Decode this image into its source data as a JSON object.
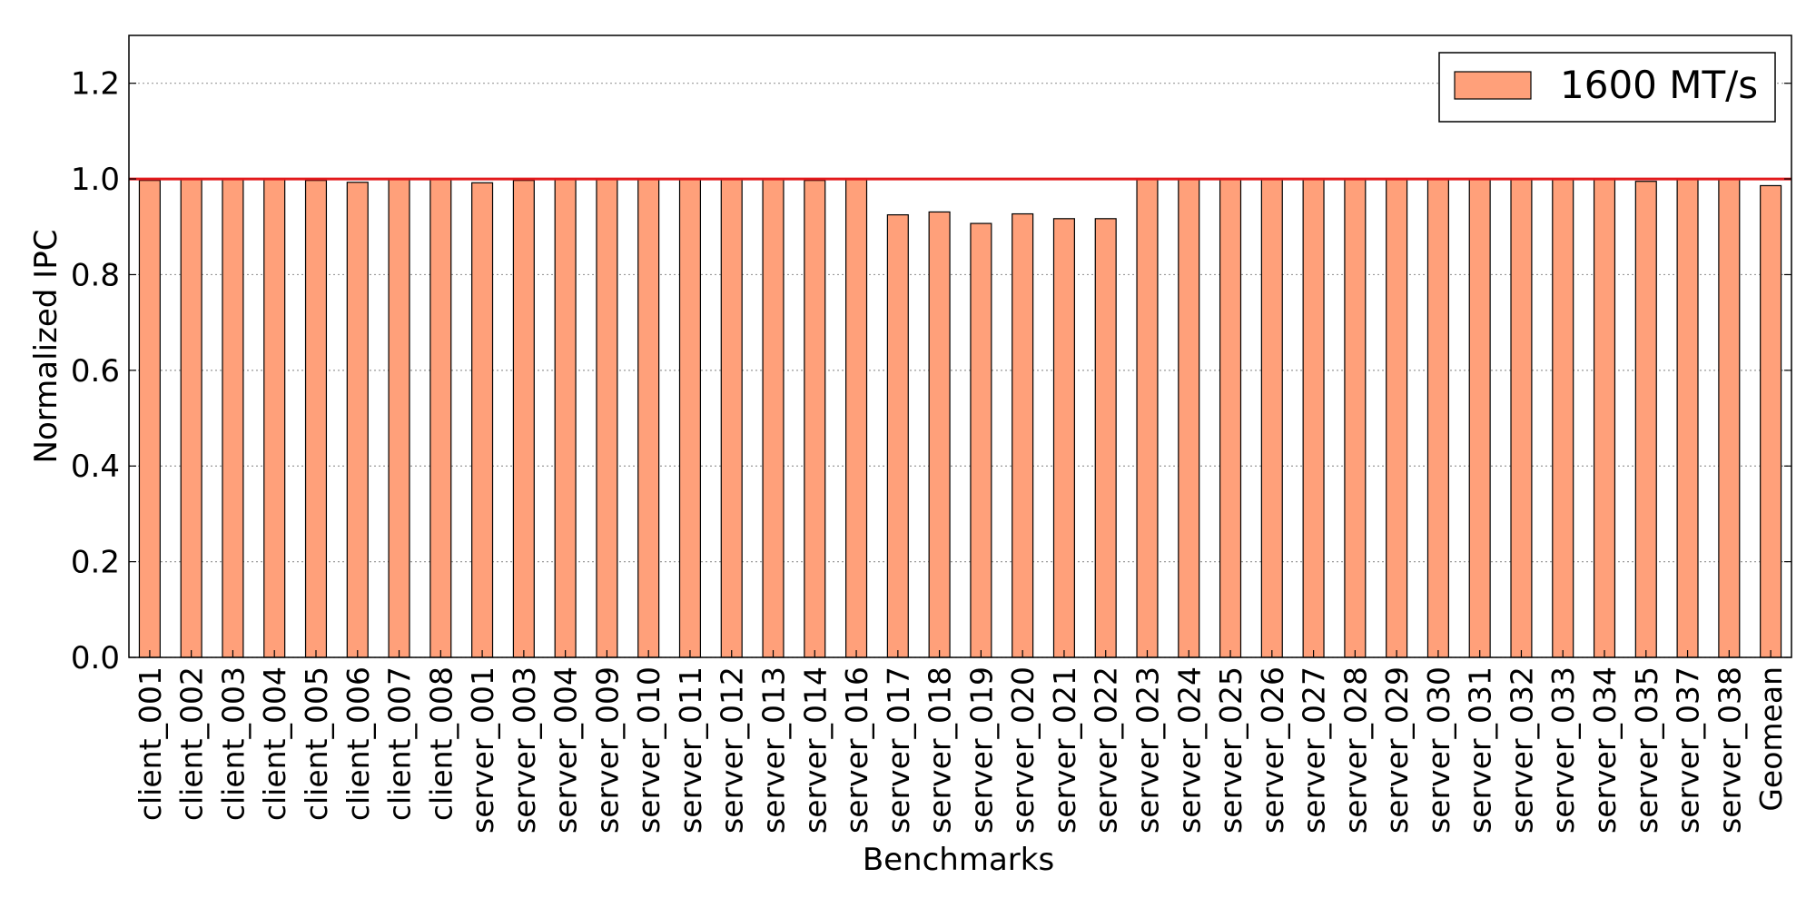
{
  "chart_data": {
    "type": "bar",
    "title": "",
    "xlabel": "Benchmarks",
    "ylabel": "Normalized IPC",
    "ylim": [
      0,
      1.3
    ],
    "yticks": [
      "0.0",
      "0.2",
      "0.4",
      "0.6",
      "0.8",
      "1.0",
      "1.2"
    ],
    "ytick_values": [
      0,
      0.2,
      0.4,
      0.6,
      0.8,
      1.0,
      1.2
    ],
    "grid": "horizontal dotted",
    "legend_position": "top-right",
    "reference_line": {
      "value": 1.0,
      "color": "#e31a1c"
    },
    "categories": [
      "client_001",
      "client_002",
      "client_003",
      "client_004",
      "client_005",
      "client_006",
      "client_007",
      "client_008",
      "server_001",
      "server_003",
      "server_004",
      "server_009",
      "server_010",
      "server_011",
      "server_012",
      "server_013",
      "server_014",
      "server_016",
      "server_017",
      "server_018",
      "server_019",
      "server_020",
      "server_021",
      "server_022",
      "server_023",
      "server_024",
      "server_025",
      "server_026",
      "server_027",
      "server_028",
      "server_029",
      "server_030",
      "server_031",
      "server_032",
      "server_033",
      "server_034",
      "server_035",
      "server_037",
      "server_038",
      "Geomean"
    ],
    "series": [
      {
        "name": "1600 MT/s",
        "color": "#ffa07a",
        "values": [
          0.997,
          1.0,
          1.0,
          1.0,
          0.997,
          0.993,
          1.0,
          1.0,
          0.992,
          0.997,
          1.0,
          1.0,
          1.0,
          1.0,
          1.0,
          1.0,
          0.997,
          1.0,
          0.925,
          0.931,
          0.907,
          0.927,
          0.917,
          0.917,
          1.0,
          1.0,
          1.0,
          1.0,
          1.0,
          1.0,
          1.0,
          1.0,
          1.0,
          1.0,
          1.0,
          1.0,
          0.995,
          1.0,
          1.0,
          0.986
        ]
      }
    ]
  }
}
